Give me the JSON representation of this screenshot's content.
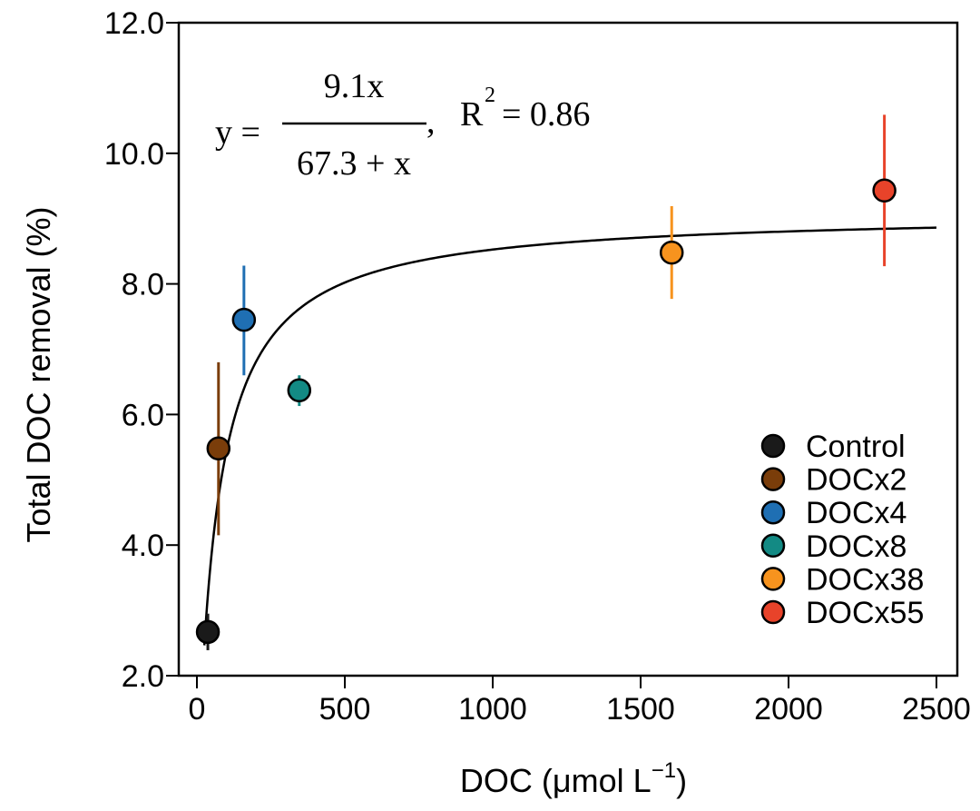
{
  "chart_data": {
    "type": "scatter",
    "title": "",
    "xlabel": {
      "main": "DOC (",
      "mu": "μ",
      "unit": "mol L",
      "sup": "−1",
      "close": ")"
    },
    "ylabel": "Total DOC removal (%)",
    "xlim": [
      -60,
      2520
    ],
    "ylim": [
      2.0,
      12.0
    ],
    "x_ticks": [
      0,
      500,
      1000,
      1500,
      2000,
      2500
    ],
    "x_tick_labels": [
      "0",
      "500",
      "1000",
      "1500",
      "2000",
      "2500"
    ],
    "y_ticks": [
      2.0,
      4.0,
      6.0,
      8.0,
      10.0,
      12.0
    ],
    "y_tick_labels": [
      "2.0",
      "4.0",
      "6.0",
      "8.0",
      "10.0",
      "12.0"
    ],
    "grid": false,
    "legend_position": "bottom-right",
    "series": [
      {
        "name": "Control",
        "color": "#1a1a1a",
        "x": 37,
        "y": 2.67,
        "err_low": 2.39,
        "err_high": 2.95
      },
      {
        "name": "DOCx2",
        "color": "#7a3d0a",
        "x": 73,
        "y": 5.48,
        "err_low": 4.15,
        "err_high": 6.8
      },
      {
        "name": "DOCx4",
        "color": "#1f6fb3",
        "x": 159,
        "y": 7.45,
        "err_low": 6.6,
        "err_high": 8.28
      },
      {
        "name": "DOCx8",
        "color": "#138a84",
        "x": 346,
        "y": 6.37,
        "err_low": 6.13,
        "err_high": 6.6
      },
      {
        "name": "DOCx38",
        "color": "#f7931e",
        "x": 1605,
        "y": 8.48,
        "err_low": 7.77,
        "err_high": 9.19
      },
      {
        "name": "DOCx55",
        "color": "#e8432a",
        "x": 2324,
        "y": 9.43,
        "err_low": 8.27,
        "err_high": 10.59
      }
    ],
    "fit": {
      "model": "michaelis-menten",
      "vmax": 9.1,
      "k": 67.3,
      "x_range": [
        25,
        2500
      ],
      "color": "#000000",
      "equation": {
        "lhs": "y =",
        "numerator": "9.1x",
        "denominator": "67.3 + x",
        "comma": ",",
        "r2_label": "R",
        "r2_sup": "2",
        "r2_value": "= 0.86"
      }
    }
  }
}
